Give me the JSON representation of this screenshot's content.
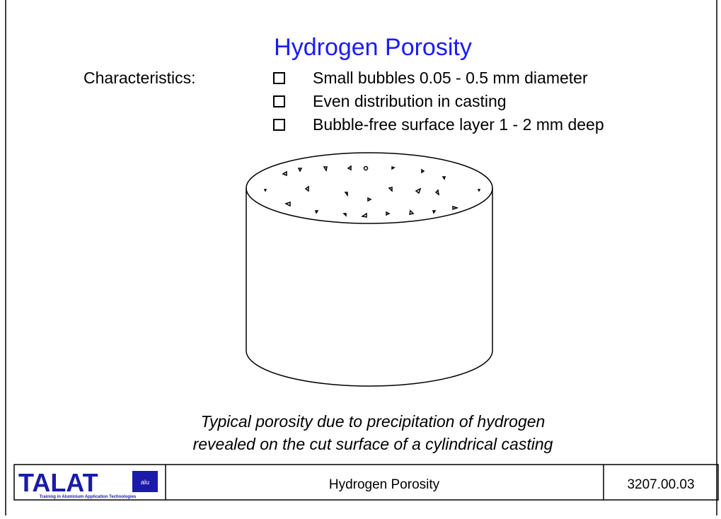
{
  "title": "Hydrogen Porosity",
  "characteristics_label": "Characteristics:",
  "characteristics": [
    "Small bubbles 0.05 - 0.5 mm diameter",
    "Even distribution in casting",
    "Bubble-free surface layer 1 - 2 mm deep"
  ],
  "caption": [
    "Typical porosity due to precipitation of hydrogen",
    "revealed on the cut surface of a cylindrical casting"
  ],
  "footer": {
    "logo": "TALAT",
    "logo_badge": "alu",
    "logo_subtitle": "Training in Aluminium Application Technologies",
    "title": "Hydrogen Porosity",
    "code": "3207.00.03"
  }
}
